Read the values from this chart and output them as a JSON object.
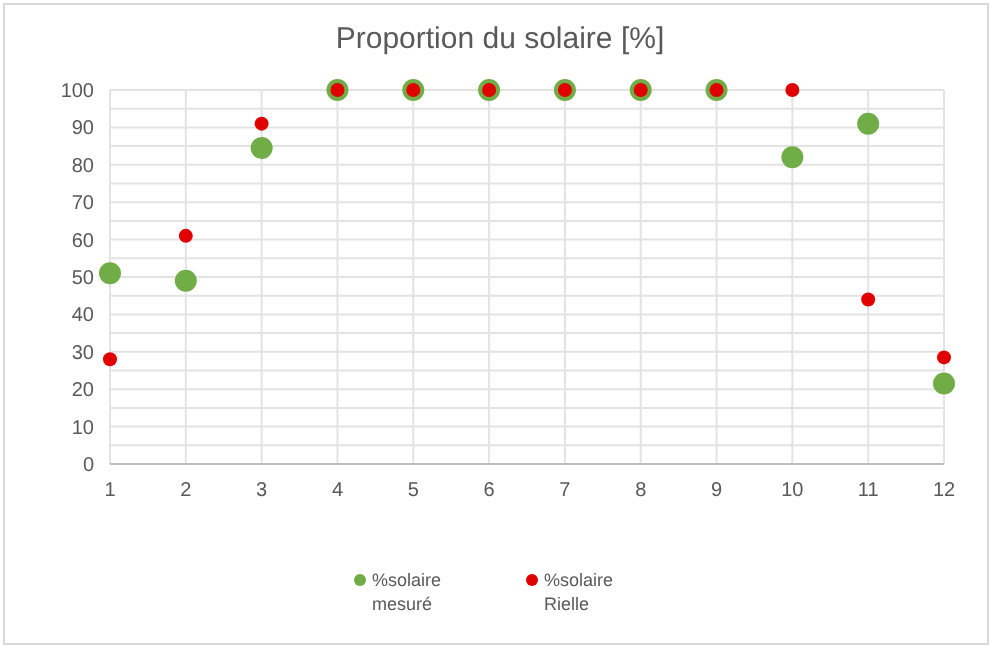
{
  "chart_data": {
    "type": "scatter",
    "title": "Proportion du solaire [%]",
    "x": [
      1,
      2,
      3,
      4,
      5,
      6,
      7,
      8,
      9,
      10,
      11,
      12
    ],
    "series": [
      {
        "name": "%solaire mesuré",
        "color": "#70ad47",
        "values": [
          51,
          49,
          84.5,
          100,
          100,
          100,
          100,
          100,
          100,
          82,
          91,
          21.5
        ]
      },
      {
        "name": "%solaire Rielle",
        "color": "#e00000",
        "values": [
          28,
          61,
          91,
          100,
          100,
          100,
          100,
          100,
          100,
          100,
          44,
          28.5
        ]
      }
    ],
    "xlim": [
      1,
      12
    ],
    "xticks": [
      1,
      2,
      3,
      4,
      5,
      6,
      7,
      8,
      9,
      10,
      11,
      12
    ],
    "ylim": [
      0,
      100
    ],
    "yticks": [
      0,
      {
        "value": 5,
        "label": null
      },
      10,
      {
        "value": 15,
        "label": null
      },
      20,
      {
        "value": 25,
        "label": null
      },
      30,
      {
        "value": 35,
        "label": null
      },
      40,
      {
        "value": 45,
        "label": null
      },
      50,
      {
        "value": 55,
        "label": null
      },
      60,
      {
        "value": 65,
        "label": null
      },
      70,
      {
        "value": 75,
        "label": null
      },
      80,
      {
        "value": 85,
        "label": null
      },
      90,
      {
        "value": 95,
        "label": null
      },
      100
    ],
    "grid": true,
    "legend": "bottom",
    "marker": "circle"
  }
}
